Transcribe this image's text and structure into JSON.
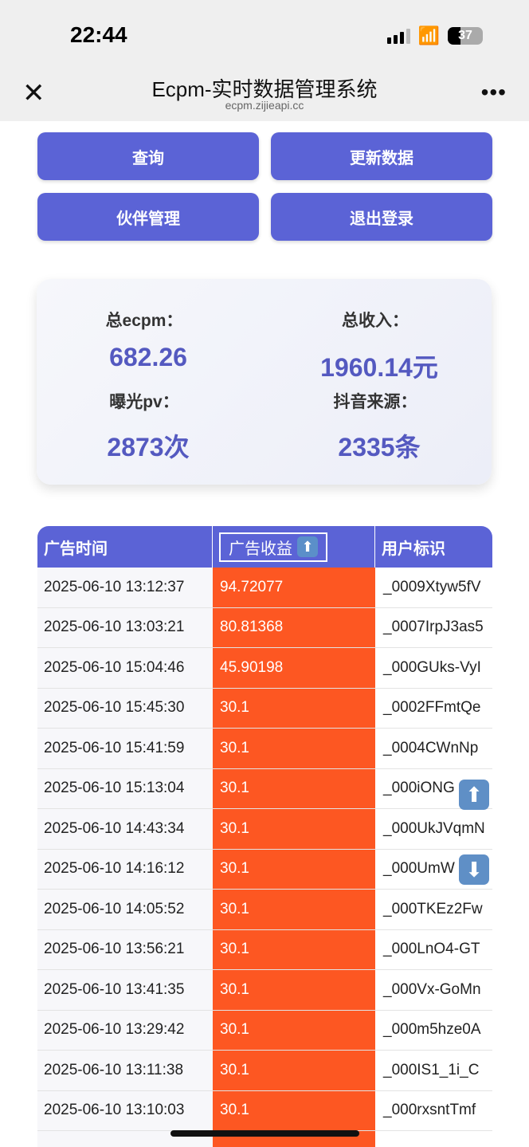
{
  "status_bar": {
    "time": "22:44",
    "battery": "37"
  },
  "nav": {
    "title": "Ecpm-实时数据管理系统",
    "url": "ecpm.zijieapi.cc"
  },
  "buttons": {
    "query": "查询",
    "update": "更新数据",
    "partner": "伙伴管理",
    "logout": "退出登录"
  },
  "stats": {
    "ecpm_label": "总ecpm：",
    "ecpm_value": "682.26",
    "income_label": "总收入：",
    "income_value": "1960.14元",
    "pv_label": "曝光pv：",
    "pv_value": "2873次",
    "source_label": "抖音来源：",
    "source_value": "2335条"
  },
  "table": {
    "headers": [
      "广告时间",
      "广告收益",
      "用户标识"
    ],
    "sort_icon": "arrow-up",
    "rows": [
      [
        "2025-06-10 13:12:37",
        "94.72077",
        "_0009Xtyw5fV"
      ],
      [
        "2025-06-10 13:03:21",
        "80.81368",
        "_0007IrpJ3as5"
      ],
      [
        "2025-06-10 15:04:46",
        "45.90198",
        "_000GUks-VyI"
      ],
      [
        "2025-06-10 15:45:30",
        "30.1",
        "_0002FFmtQe"
      ],
      [
        "2025-06-10 15:41:59",
        "30.1",
        "_0004CWnNp"
      ],
      [
        "2025-06-10 15:13:04",
        "30.1",
        "_000iONG"
      ],
      [
        "2025-06-10 14:43:34",
        "30.1",
        "_000UkJVqmN"
      ],
      [
        "2025-06-10 14:16:12",
        "30.1",
        "_000UmW"
      ],
      [
        "2025-06-10 14:05:52",
        "30.1",
        "_000TKEz2Fw"
      ],
      [
        "2025-06-10 13:56:21",
        "30.1",
        "_000LnO4-GT"
      ],
      [
        "2025-06-10 13:41:35",
        "30.1",
        "_000Vx-GoMn"
      ],
      [
        "2025-06-10 13:29:42",
        "30.1",
        "_000m5hze0A"
      ],
      [
        "2025-06-10 13:11:38",
        "30.1",
        "_000IS1_1i_C"
      ],
      [
        "2025-06-10 13:10:03",
        "30.1",
        "_000rxsntTmf"
      ]
    ]
  },
  "colors": {
    "primary": "#5b63d6",
    "highlight": "#fd5722",
    "value_text": "#5459c0"
  },
  "floating": {
    "up_icon": "arrow-up",
    "down_icon": "arrow-down"
  }
}
